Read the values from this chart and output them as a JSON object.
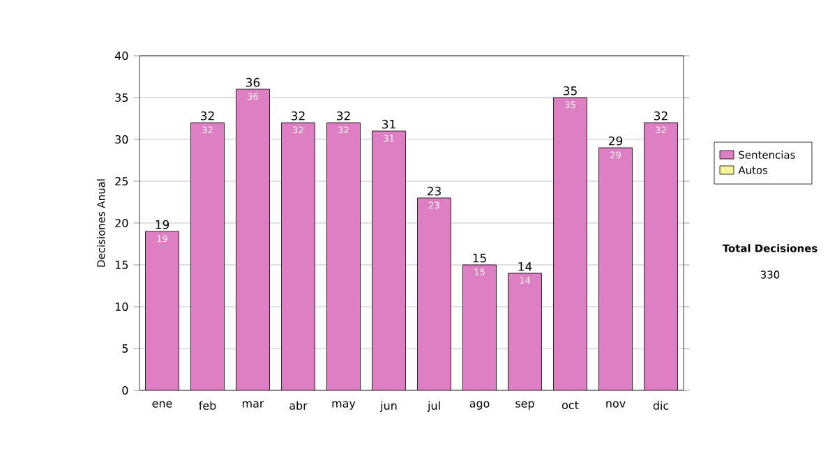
{
  "chart_data": {
    "type": "bar",
    "stacked": true,
    "ylabel": "Decisiones Anual",
    "categories": [
      "ene",
      "feb",
      "mar",
      "abr",
      "may",
      "jun",
      "jul",
      "ago",
      "sep",
      "oct",
      "nov",
      "dic"
    ],
    "series": [
      {
        "name": "Sentencias",
        "color": "#df7fc3",
        "values": [
          19,
          32,
          36,
          32,
          32,
          31,
          23,
          15,
          14,
          35,
          29,
          32
        ],
        "value_labels": [
          "19",
          "32",
          "36",
          "32",
          "32",
          "31",
          "23",
          "15",
          "14",
          "35",
          "29",
          "32"
        ]
      },
      {
        "name": "Autos",
        "color": "#f4f49a",
        "values": [
          null,
          null,
          null,
          null,
          null,
          null,
          null,
          null,
          null,
          null,
          null,
          null
        ]
      }
    ],
    "totals": [
      "19",
      "32",
      "36",
      "32",
      "32",
      "31",
      "23",
      "15",
      "14",
      "35",
      "29",
      "32"
    ],
    "ylim": [
      0,
      40
    ],
    "yticks": [
      0,
      5,
      10,
      15,
      20,
      25,
      30,
      35,
      40
    ],
    "grid": "y",
    "legend": "right",
    "annotations": [
      "Total Decisiones",
      "330"
    ]
  }
}
